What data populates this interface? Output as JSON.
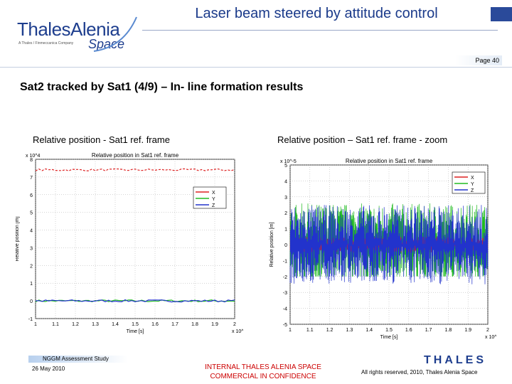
{
  "header": {
    "logo_main": "ThalesAlenia",
    "logo_tagline": "A Thales / Finmeccanica Company",
    "logo_space": "Space",
    "title": "Laser beam steered by attitude control",
    "page_label": "Page 40"
  },
  "section_title": "Sat2 tracked by Sat1 (4/9) – In- line formation results",
  "captions": {
    "left": "Relative position - Sat1 ref. frame",
    "right": "Relative position – Sat1 ref. frame - zoom"
  },
  "chart_data": [
    {
      "type": "line",
      "title": "Relative position in Sat1 ref. frame",
      "xlabel": "Time [s]",
      "ylabel": "Relative position [m]",
      "x_exponent": "x 10^5",
      "y_exponent": "x 10^4",
      "xlim": [
        1.0,
        2.0
      ],
      "ylim": [
        -1,
        8
      ],
      "x_ticks": [
        "1",
        "1.1",
        "1.2",
        "1.3",
        "1.4",
        "1.5",
        "1.6",
        "1.7",
        "1.8",
        "1.9",
        "2"
      ],
      "y_ticks": [
        "-1",
        "0",
        "1",
        "2",
        "3",
        "4",
        "5",
        "6",
        "7",
        "8"
      ],
      "series": [
        {
          "name": "X",
          "color": "#dd2222",
          "value": 7.4
        },
        {
          "name": "Y",
          "color": "#22bb22",
          "value": 0.0
        },
        {
          "name": "Z",
          "color": "#2233cc",
          "value": 0.0
        }
      ],
      "grid": true,
      "legend": "right"
    },
    {
      "type": "line",
      "title": "Relative position in Sat1 ref. frame",
      "xlabel": "Time [s]",
      "ylabel": "Relative position [m]",
      "x_exponent": "x 10^5",
      "y_exponent": "x 10^-5",
      "xlim": [
        1.0,
        2.0
      ],
      "ylim": [
        -5,
        5
      ],
      "x_ticks": [
        "1",
        "1.1",
        "1.2",
        "1.3",
        "1.4",
        "1.5",
        "1.6",
        "1.7",
        "1.8",
        "1.9",
        "2"
      ],
      "y_ticks": [
        "-5",
        "-4",
        "-3",
        "-2",
        "-1",
        "0",
        "1",
        "2",
        "3",
        "4",
        "5"
      ],
      "series": [
        {
          "name": "X",
          "color": "#dd2222",
          "range": [
            -0.5,
            0.5
          ]
        },
        {
          "name": "Y",
          "color": "#22bb22",
          "range": [
            -2.0,
            2.6
          ]
        },
        {
          "name": "Z",
          "color": "#2233cc",
          "range": [
            -2.5,
            2.5
          ]
        }
      ],
      "grid": true,
      "legend": "top-right"
    }
  ],
  "footer": {
    "study": "NGGM Assessment Study",
    "date": "26 May 2010",
    "internal_line1": "INTERNAL THALES ALENIA SPACE",
    "internal_line2": "COMMERCIAL IN CONFIDENCE",
    "brand": "THALES",
    "rights": "All rights reserved, 2010, Thales Alenia Space"
  },
  "colors": {
    "title": "#1a3a8a",
    "logo": "#1e3e8e",
    "confidential": "#cc0000"
  }
}
